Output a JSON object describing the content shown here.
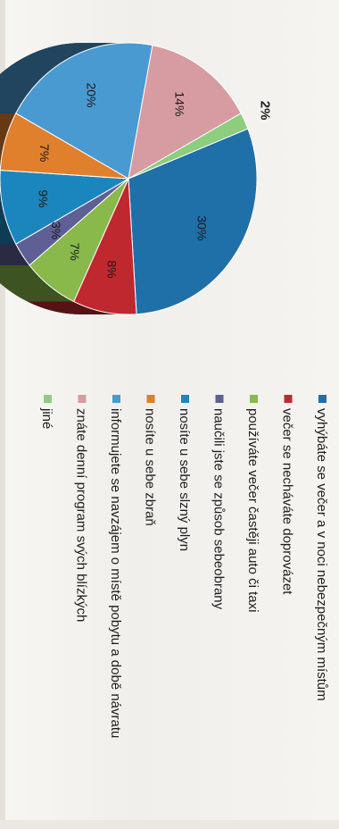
{
  "chart_data": {
    "type": "pie",
    "orientation": "rotated-90-clockwise",
    "slices": [
      {
        "label": "vyhýbáte se večer a v noci nebezpečným místům",
        "value": 30,
        "value_label": "30%",
        "color": "#1f6fa8"
      },
      {
        "label": "večer se necháváte doprovázet",
        "value": 8,
        "value_label": "8%",
        "color": "#c0282f"
      },
      {
        "label": "používáte večer častěji auto či taxi",
        "value": 7,
        "value_label": "7%",
        "color": "#88b94a"
      },
      {
        "label": "naučili jste se způsob sebeobrany",
        "value": 3,
        "value_label": "3%",
        "color": "#5e5f95"
      },
      {
        "label": "nosíte u sebe slzný plyn",
        "value": 9,
        "value_label": "9%",
        "color": "#1b86be"
      },
      {
        "label": "nosíte u sebe zbraň",
        "value": 7,
        "value_label": "7%",
        "color": "#e07f2c"
      },
      {
        "label": "informujete se navzájem o místě pobytu a době návratu",
        "value": 20,
        "value_label": "20%",
        "color": "#4a9ad2"
      },
      {
        "label": "znáte denní program svých blízkých",
        "value": 14,
        "value_label": "14%",
        "color": "#d69ca2"
      },
      {
        "label": "jiné",
        "value": 2,
        "value_label": "2%",
        "color": "#8dcd7e"
      }
    ]
  }
}
